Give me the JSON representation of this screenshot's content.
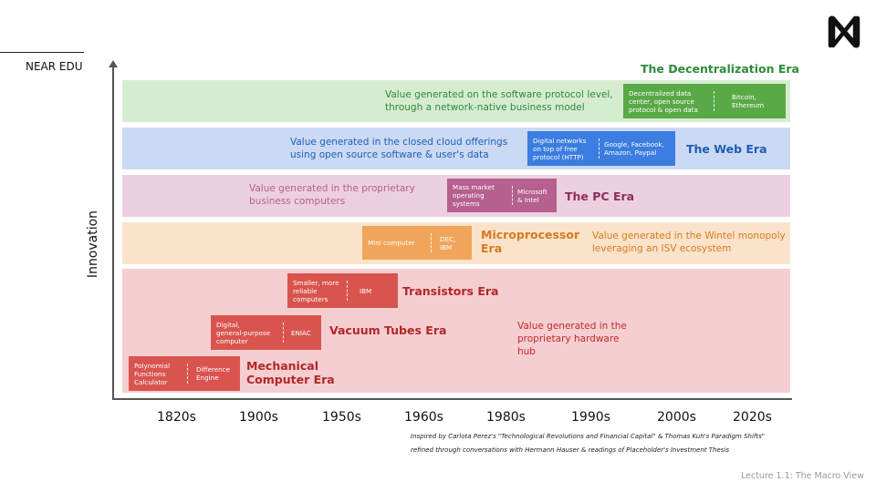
{
  "brand": "NEAR EDU",
  "logo_icon": "near-logo-icon",
  "y_axis_label": "Innovation",
  "decades": [
    "1820s",
    "1900s",
    "1950s",
    "1960s",
    "1980s",
    "1990s",
    "2000s",
    "2020s"
  ],
  "eras": {
    "decentralization": {
      "title": "The Decentralization Era",
      "desc_line1": "Value generated on the software protocol level,",
      "desc_line2": "through a network-native business model",
      "box_left": [
        "Decentralized data",
        "center, open source",
        "protocol & open data"
      ],
      "box_right": [
        "Bitcoin,",
        "Ethereum"
      ],
      "color": "#5aa947"
    },
    "web": {
      "title": "The Web Era",
      "desc_line1": "Value generated in the closed cloud offerings",
      "desc_line2": "using open source software & user's data",
      "box_left": [
        "Digital networks",
        "on top of free",
        "protocol (HTTP)"
      ],
      "box_right": [
        "Google, Facebook,",
        "Amazon, Paypal"
      ],
      "color": "#3b7de0"
    },
    "pc": {
      "title": "The PC Era",
      "desc_line1": "Value generated in the proprietary",
      "desc_line2": "business computers",
      "box_left": [
        "Mass market",
        "operating",
        "systems"
      ],
      "box_right": [
        "Microsoft",
        "& Intel"
      ],
      "color": "#b5608f"
    },
    "micro": {
      "title_line1": "Microprocessor",
      "title_line2": "Era",
      "desc_line1": "Value generated in the Wintel monopoly",
      "desc_line2": "leveraging an ISV ecosystem",
      "box_left": [
        "Mini computer"
      ],
      "box_right": [
        "DEC,",
        "IBM"
      ],
      "color": "#f1a55a"
    },
    "transistors": {
      "title": "Transistors Era",
      "box_left": [
        "Smaller, more",
        "reliable",
        "computers"
      ],
      "box_right": [
        "IBM"
      ],
      "color": "#d9544f"
    },
    "vacuum": {
      "title": "Vacuum Tubes Era",
      "box_left": [
        "Digital,",
        "general-purpose",
        "computer"
      ],
      "box_right": [
        "ENIAC"
      ],
      "color": "#d9544f"
    },
    "mechanical": {
      "title_line1": "Mechanical",
      "title_line2": "Computer Era",
      "box_left": [
        "Polynomial",
        "Functions",
        "Calculator"
      ],
      "box_right": [
        "Difference",
        "Engine"
      ],
      "color": "#d9544f"
    },
    "hardware_desc": [
      "Value generated in the",
      "proprietary hardware",
      "hub"
    ]
  },
  "footnote_line1": "Inspired by Carlota Perez's \"Technological Revolutions and Financial Capital\" & Thomas Kuh's Paradigm Shifts\"",
  "footnote_line2": "refined through conversations with Hermann Hauser & readings of Placeholder's Investment Thesis",
  "lecture": "Lecture 1.1: The Macro View"
}
